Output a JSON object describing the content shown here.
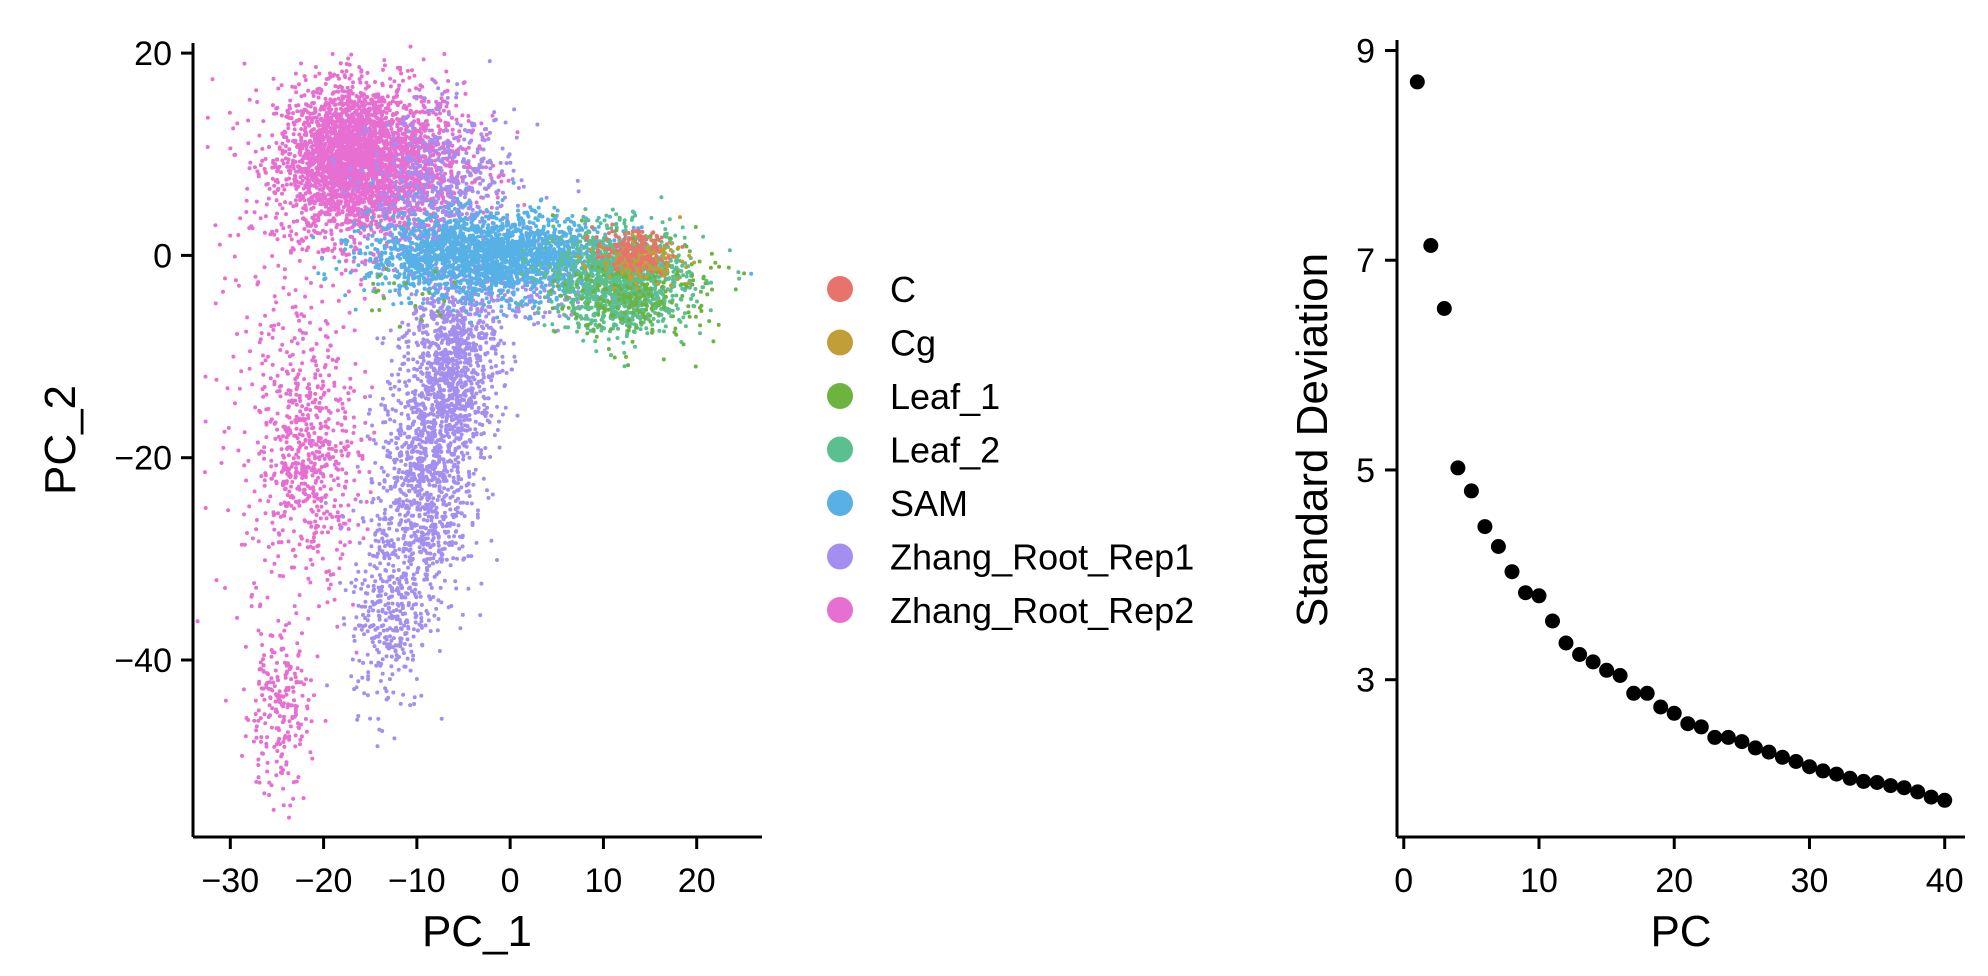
{
  "chart_data": [
    {
      "type": "scatter",
      "xlabel": "PC_1",
      "ylabel": "PC_2",
      "xlim": [
        -34,
        27
      ],
      "ylim": [
        -57.5,
        21
      ],
      "x_ticks": [
        -30,
        -20,
        -10,
        0,
        10,
        20
      ],
      "x_tick_labels": [
        "−30",
        "−20",
        "−10",
        "0",
        "10",
        "20"
      ],
      "y_ticks": [
        -40,
        -20,
        0,
        20
      ],
      "y_tick_labels": [
        "−40",
        "−20",
        "0",
        "20"
      ],
      "legend_position": "right",
      "series": [
        {
          "name": "C",
          "color": "#E8736C",
          "clusters": [
            {
              "cx": 13,
              "cy": 0.5,
              "sx": 2.0,
              "sy": 1.0,
              "n": 150
            }
          ]
        },
        {
          "name": "Cg",
          "color": "#C29E38",
          "clusters": [
            {
              "cx": 14,
              "cy": -0.5,
              "sx": 2.2,
              "sy": 1.0,
              "n": 180
            }
          ]
        },
        {
          "name": "Leaf_1",
          "color": "#6DB33F",
          "clusters": [
            {
              "cx": 14,
              "cy": -4,
              "sx": 4.0,
              "sy": 2.5,
              "n": 220
            },
            {
              "cx": -12,
              "cy": -4,
              "sx": 3.0,
              "sy": 1.5,
              "n": 20
            }
          ]
        },
        {
          "name": "Leaf_2",
          "color": "#5BBF8F",
          "clusters": [
            {
              "cx": 12,
              "cy": -2.5,
              "sx": 3.5,
              "sy": 2.5,
              "n": 1300
            }
          ]
        },
        {
          "name": "SAM",
          "color": "#57B1E6",
          "clusters": [
            {
              "cx": -2,
              "cy": 0,
              "sx": 6.5,
              "sy": 2.0,
              "n": 2200
            }
          ]
        },
        {
          "name": "Zhang_Root_Rep1",
          "color": "#A48EF0",
          "clusters": [
            {
              "cx": -7,
              "cy": 6,
              "sx": 4.0,
              "sy": 4.0,
              "n": 500
            },
            {
              "cx": -6,
              "cy": -10,
              "sx": 2.5,
              "sy": 5.0,
              "n": 900
            },
            {
              "cx": -9,
              "cy": -22,
              "sx": 2.5,
              "sy": 6.0,
              "n": 900
            },
            {
              "cx": -13,
              "cy": -35,
              "sx": 2.0,
              "sy": 5.0,
              "n": 350
            },
            {
              "cx": 1,
              "cy": -3,
              "sx": 4.0,
              "sy": 2.0,
              "n": 200
            }
          ]
        },
        {
          "name": "Zhang_Root_Rep2",
          "color": "#E76FD1",
          "clusters": [
            {
              "cx": -15,
              "cy": 9,
              "sx": 5.0,
              "sy": 4.0,
              "n": 2600
            },
            {
              "cx": -18,
              "cy": 10,
              "sx": 2.5,
              "sy": 3.0,
              "n": 900
            },
            {
              "cx": -21,
              "cy": -20,
              "sx": 2.5,
              "sy": 5.0,
              "n": 450
            },
            {
              "cx": -25,
              "cy": -45,
              "sx": 1.8,
              "sy": 4.0,
              "n": 220
            },
            {
              "cx": -24,
              "cy": -15,
              "sx": 4.0,
              "sy": 12.0,
              "n": 300
            }
          ]
        }
      ]
    },
    {
      "type": "scatter",
      "xlabel": "PC",
      "ylabel": "Standard Deviation",
      "xlim": [
        -0.5,
        41.5
      ],
      "ylim": [
        1.5,
        9.1
      ],
      "x_ticks": [
        0,
        10,
        20,
        30,
        40
      ],
      "x_tick_labels": [
        "0",
        "10",
        "20",
        "30",
        "40"
      ],
      "y_ticks": [
        3,
        5,
        7,
        9
      ],
      "y_tick_labels": [
        "3",
        "5",
        "7",
        "9"
      ],
      "point_color": "#000000",
      "x": [
        1,
        2,
        3,
        4,
        5,
        6,
        7,
        8,
        9,
        10,
        11,
        12,
        13,
        14,
        15,
        16,
        17,
        18,
        19,
        20,
        21,
        22,
        23,
        24,
        25,
        26,
        27,
        28,
        29,
        30,
        31,
        32,
        33,
        34,
        35,
        36,
        37,
        38,
        39,
        40
      ],
      "y": [
        8.7,
        7.14,
        6.54,
        5.02,
        4.8,
        4.46,
        4.27,
        4.03,
        3.83,
        3.8,
        3.56,
        3.35,
        3.24,
        3.17,
        3.09,
        3.04,
        2.87,
        2.87,
        2.74,
        2.68,
        2.58,
        2.55,
        2.45,
        2.45,
        2.41,
        2.35,
        2.31,
        2.26,
        2.22,
        2.17,
        2.13,
        2.1,
        2.06,
        2.03,
        2.02,
        1.99,
        1.97,
        1.93,
        1.88,
        1.85
      ]
    }
  ]
}
